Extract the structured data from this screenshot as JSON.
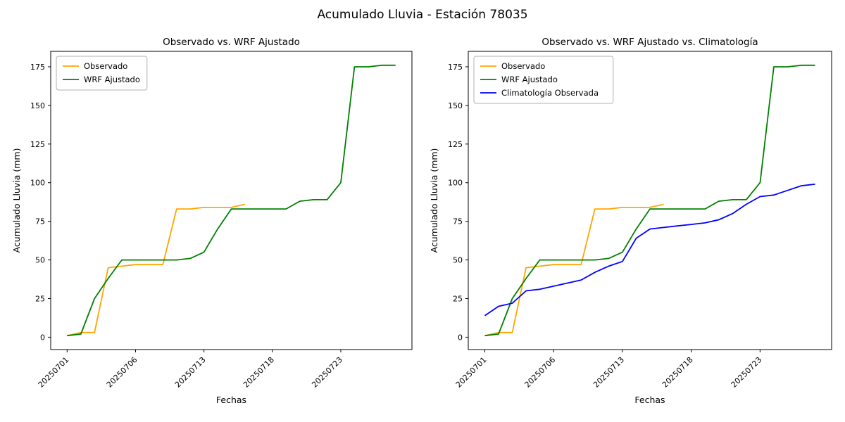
{
  "figure": {
    "title": "Acumulado Lluvia - Estación 78035",
    "background_color": "#ffffff"
  },
  "chart_data": [
    {
      "type": "line",
      "title": "Observado vs. WRF Ajustado",
      "xlabel": "Fechas",
      "ylabel": "Acumulado Lluvia (mm)",
      "x_tick_labels": [
        "20250701",
        "20250706",
        "20250713",
        "20250718",
        "20250723"
      ],
      "x_tick_indices": [
        0,
        5,
        10,
        15,
        20
      ],
      "y_ticks": [
        0,
        25,
        50,
        75,
        100,
        125,
        150,
        175
      ],
      "xlim": [
        -1.2,
        25.2
      ],
      "ylim": [
        -8,
        185
      ],
      "grid": false,
      "legend_position": "upper-left",
      "series": [
        {
          "name": "Observado",
          "color": "#ffa500",
          "x": [
            0,
            1,
            2,
            3,
            4,
            5,
            6,
            7,
            8,
            9,
            10,
            11,
            12,
            13
          ],
          "values": [
            1,
            3,
            3,
            45,
            46,
            47,
            47,
            47,
            83,
            83,
            84,
            84,
            84,
            86
          ]
        },
        {
          "name": "WRF Ajustado",
          "color": "#008000",
          "x": [
            0,
            1,
            2,
            3,
            4,
            5,
            6,
            7,
            8,
            9,
            10,
            11,
            12,
            13,
            14,
            15,
            16,
            17,
            18,
            19,
            20,
            21,
            22,
            23,
            24
          ],
          "values": [
            1,
            2,
            25,
            38,
            50,
            50,
            50,
            50,
            50,
            51,
            55,
            70,
            83,
            83,
            83,
            83,
            83,
            88,
            89,
            89,
            100,
            175,
            175,
            176,
            176
          ]
        }
      ]
    },
    {
      "type": "line",
      "title": "Observado vs. WRF Ajustado vs. Climatología",
      "xlabel": "Fechas",
      "ylabel": "Acumulado Lluvia (mm)",
      "x_tick_labels": [
        "20250701",
        "20250706",
        "20250713",
        "20250718",
        "20250723"
      ],
      "x_tick_indices": [
        0,
        5,
        10,
        15,
        20
      ],
      "y_ticks": [
        0,
        25,
        50,
        75,
        100,
        125,
        150,
        175
      ],
      "xlim": [
        -1.2,
        25.2
      ],
      "ylim": [
        -8,
        185
      ],
      "grid": false,
      "legend_position": "upper-left",
      "series": [
        {
          "name": "Observado",
          "color": "#ffa500",
          "x": [
            0,
            1,
            2,
            3,
            4,
            5,
            6,
            7,
            8,
            9,
            10,
            11,
            12,
            13
          ],
          "values": [
            1,
            3,
            3,
            45,
            46,
            47,
            47,
            47,
            83,
            83,
            84,
            84,
            84,
            86
          ]
        },
        {
          "name": "WRF Ajustado",
          "color": "#008000",
          "x": [
            0,
            1,
            2,
            3,
            4,
            5,
            6,
            7,
            8,
            9,
            10,
            11,
            12,
            13,
            14,
            15,
            16,
            17,
            18,
            19,
            20,
            21,
            22,
            23,
            24
          ],
          "values": [
            1,
            2,
            25,
            38,
            50,
            50,
            50,
            50,
            50,
            51,
            55,
            70,
            83,
            83,
            83,
            83,
            83,
            88,
            89,
            89,
            100,
            175,
            175,
            176,
            176
          ]
        },
        {
          "name": "Climatología Observada",
          "color": "#0000ff",
          "x": [
            0,
            1,
            2,
            3,
            4,
            5,
            6,
            7,
            8,
            9,
            10,
            11,
            12,
            13,
            14,
            15,
            16,
            17,
            18,
            19,
            20,
            21,
            22,
            23,
            24
          ],
          "values": [
            14,
            20,
            22,
            30,
            31,
            33,
            35,
            37,
            42,
            46,
            49,
            64,
            70,
            71,
            72,
            73,
            74,
            76,
            80,
            86,
            91,
            92,
            95,
            98,
            99
          ]
        }
      ]
    }
  ]
}
